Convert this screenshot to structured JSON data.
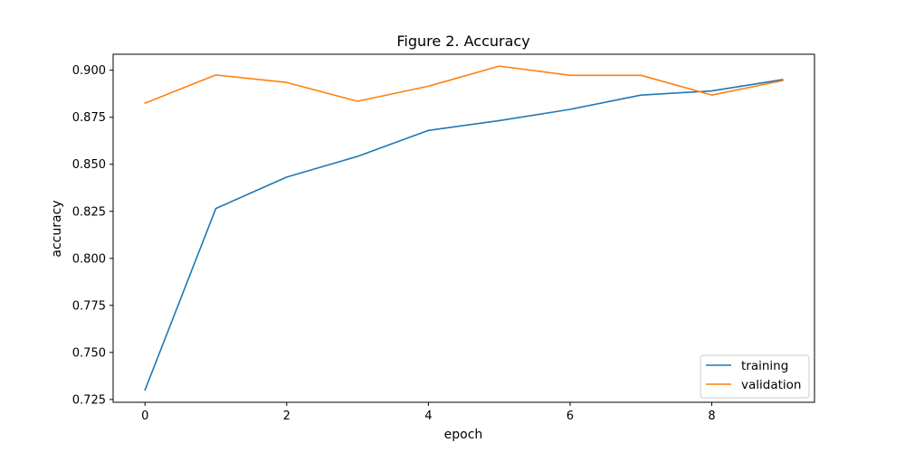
{
  "chart_data": {
    "type": "line",
    "title": "Figure 2. Accuracy",
    "xlabel": "epoch",
    "ylabel": "accuracy",
    "xlim": [
      -0.45,
      9.45
    ],
    "ylim": [
      0.7235,
      0.9085
    ],
    "xticks": [
      0,
      2,
      4,
      6,
      8
    ],
    "xtick_labels": [
      "0",
      "2",
      "4",
      "6",
      "8"
    ],
    "yticks": [
      0.725,
      0.75,
      0.775,
      0.8,
      0.825,
      0.85,
      0.875,
      0.9
    ],
    "ytick_labels": [
      "0.725",
      "0.750",
      "0.775",
      "0.800",
      "0.825",
      "0.850",
      "0.875",
      "0.900"
    ],
    "grid": false,
    "legend_position": "lower-right",
    "x": [
      0,
      1,
      2,
      3,
      4,
      5,
      6,
      7,
      8,
      9
    ],
    "series": [
      {
        "name": "training",
        "color": "#1f77b4",
        "values": [
          0.73,
          0.8265,
          0.8432,
          0.8542,
          0.868,
          0.8732,
          0.8792,
          0.8868,
          0.889,
          0.895
        ]
      },
      {
        "name": "validation",
        "color": "#ff7f0e",
        "values": [
          0.8825,
          0.8975,
          0.8935,
          0.8835,
          0.8915,
          0.9022,
          0.8973,
          0.8973,
          0.8868,
          0.8945
        ]
      }
    ]
  }
}
